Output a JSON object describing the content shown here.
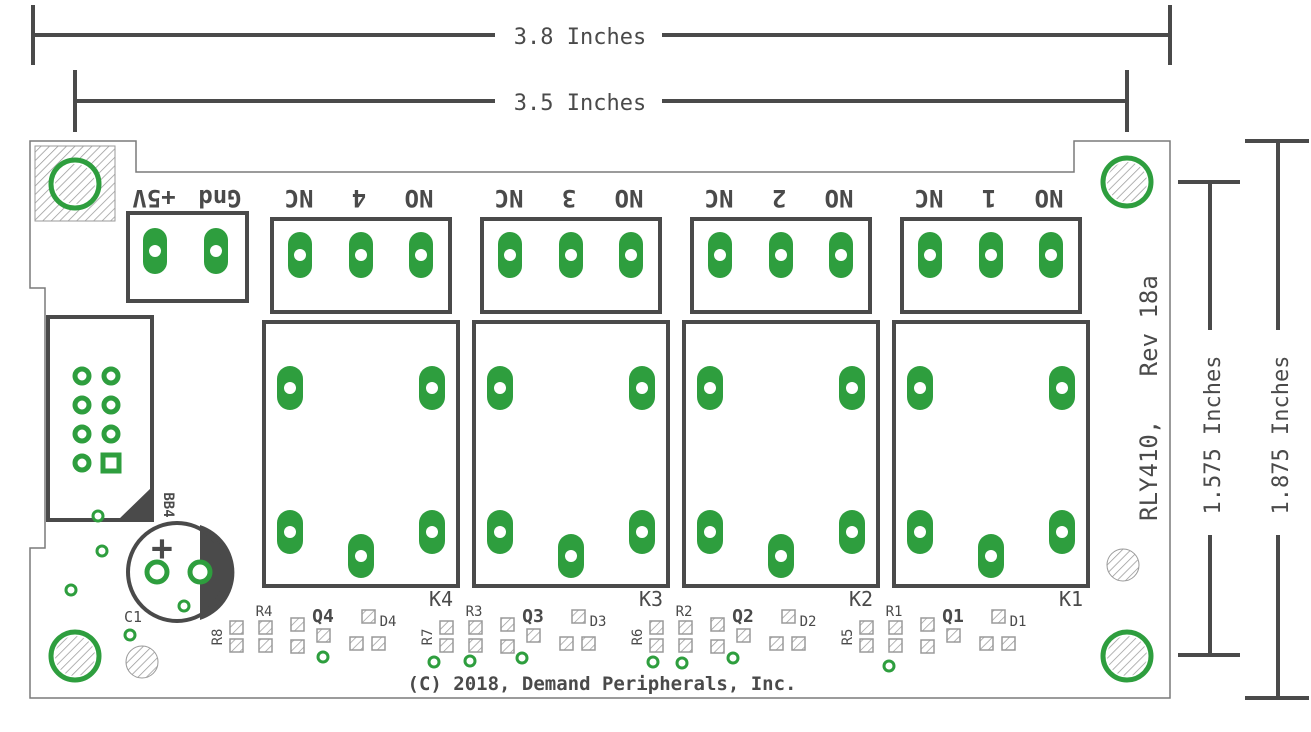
{
  "dimensions": {
    "outer_width": "3.8 Inches",
    "inner_width": "3.5 Inches",
    "inner_height": "1.575 Inches",
    "outer_height": "1.875 Inches"
  },
  "board_id": "RLY410,   Rev 18a",
  "copyright": "(C) 2018, Demand Peripherals, Inc.",
  "connector": {
    "gnd_label": "Gnd",
    "vcc_label": "+5V",
    "ic_label": "BB4"
  },
  "relays": [
    {
      "ref": "K4",
      "nc": "NC",
      "num": "4",
      "no": "NO",
      "transistor": "Q4",
      "diode": "D4",
      "r_a": "R8",
      "r_b": "R4"
    },
    {
      "ref": "K3",
      "nc": "NC",
      "num": "3",
      "no": "NO",
      "transistor": "Q3",
      "diode": "D3",
      "r_a": "R7",
      "r_b": "R3"
    },
    {
      "ref": "K2",
      "nc": "NC",
      "num": "2",
      "no": "NO",
      "transistor": "Q2",
      "diode": "D2",
      "r_a": "R6",
      "r_b": "R2"
    },
    {
      "ref": "K1",
      "nc": "NC",
      "num": "1",
      "no": "NO",
      "transistor": "Q1",
      "diode": "D1",
      "r_a": "R5",
      "r_b": "R1"
    }
  ],
  "capacitor": {
    "ref": "C1",
    "polarity": "+"
  },
  "colors": {
    "line": "#4a4a4a",
    "pad": "#2e9e3e",
    "hatch": "#9a9a9a"
  }
}
